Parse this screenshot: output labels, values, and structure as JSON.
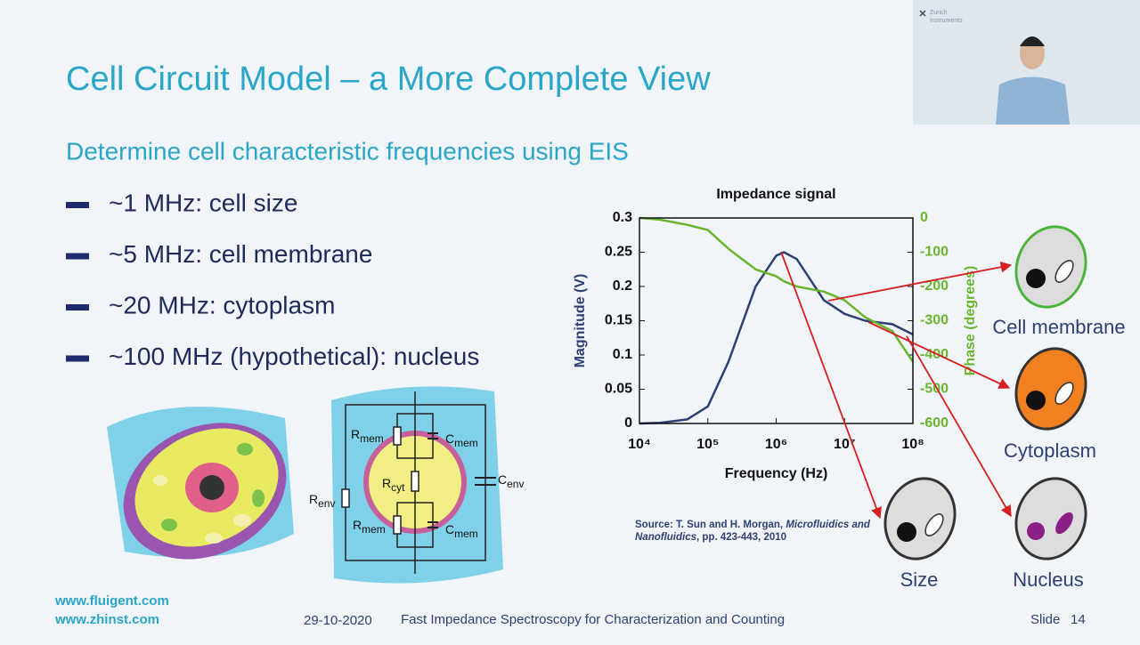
{
  "header": {
    "title": "Cell Circuit Model – a More Complete View",
    "subtitle": "Determine cell characteristic frequencies using EIS"
  },
  "bullets": [
    "~1 MHz: cell size",
    "~5 MHz: cell membrane",
    "~20 MHz: cytoplasm",
    "~100 MHz (hypothetical): nucleus"
  ],
  "circuit": {
    "labels": [
      {
        "symbol": "R",
        "subscript": "mem"
      },
      {
        "symbol": "C",
        "subscript": "mem"
      },
      {
        "symbol": "R",
        "subscript": "cyt"
      },
      {
        "symbol": "C",
        "subscript": "env"
      },
      {
        "symbol": "R",
        "subscript": "env"
      },
      {
        "symbol": "R",
        "subscript": "mem"
      },
      {
        "symbol": "C",
        "subscript": "mem"
      }
    ]
  },
  "chart_data": {
    "type": "line",
    "title": "Impedance signal",
    "x_label": "Frequency (Hz)",
    "y_label": "Magnitude (V)",
    "y2_label": "Phase (degrees)",
    "log_x": true,
    "x": [
      10000,
      20000,
      50000,
      100000,
      200000,
      500000,
      1000000,
      1300000,
      2000000,
      5000000,
      10000000,
      20000000,
      50000000,
      100000000
    ],
    "xlim": [
      10000,
      100000000
    ],
    "xticks": [
      {
        "value": 10000,
        "label": "10⁴"
      },
      {
        "value": 100000,
        "label": "10⁵"
      },
      {
        "value": 1000000,
        "label": "10⁶"
      },
      {
        "value": 10000000,
        "label": "10⁷"
      },
      {
        "value": 100000000,
        "label": "10⁸"
      }
    ],
    "ylim": [
      0,
      0.3
    ],
    "yticks": [
      0,
      0.05,
      0.1,
      0.15,
      0.2,
      0.25,
      0.3
    ],
    "y2lim": [
      -600,
      0
    ],
    "y2ticks": [
      0,
      -100,
      -200,
      -300,
      -400,
      -500,
      -600
    ],
    "series": [
      {
        "name": "Magnitude",
        "color": "#2e3f73",
        "values": [
          0,
          0.001,
          0.006,
          0.025,
          0.09,
          0.2,
          0.245,
          0.25,
          0.24,
          0.18,
          0.16,
          0.15,
          0.145,
          0.13
        ]
      },
      {
        "name": "Phase",
        "color": "#6ab52e",
        "axis": "y2",
        "values": [
          0,
          -5,
          -20,
          -35,
          -90,
          -150,
          -170,
          -185,
          -200,
          -215,
          -240,
          -290,
          -330,
          -420
        ]
      }
    ]
  },
  "cell_labels": [
    "Cell membrane",
    "Cytoplasm",
    "Size",
    "Nucleus"
  ],
  "source": {
    "text": "Source: T. Sun and H. Morgan, ",
    "journal": "Microfluidics and Nanofluidics",
    "pages": ", pp. 423-443, 2010"
  },
  "logo": [
    "Zurich",
    "Instruments"
  ],
  "footer": {
    "links": [
      "www.fluigent.com",
      "www.zhinst.com"
    ],
    "date": "29-10-2020",
    "talk": "Fast Impedance Spectroscopy for Characterization and Counting",
    "slide": {
      "label": "Slide",
      "number": 14
    }
  }
}
